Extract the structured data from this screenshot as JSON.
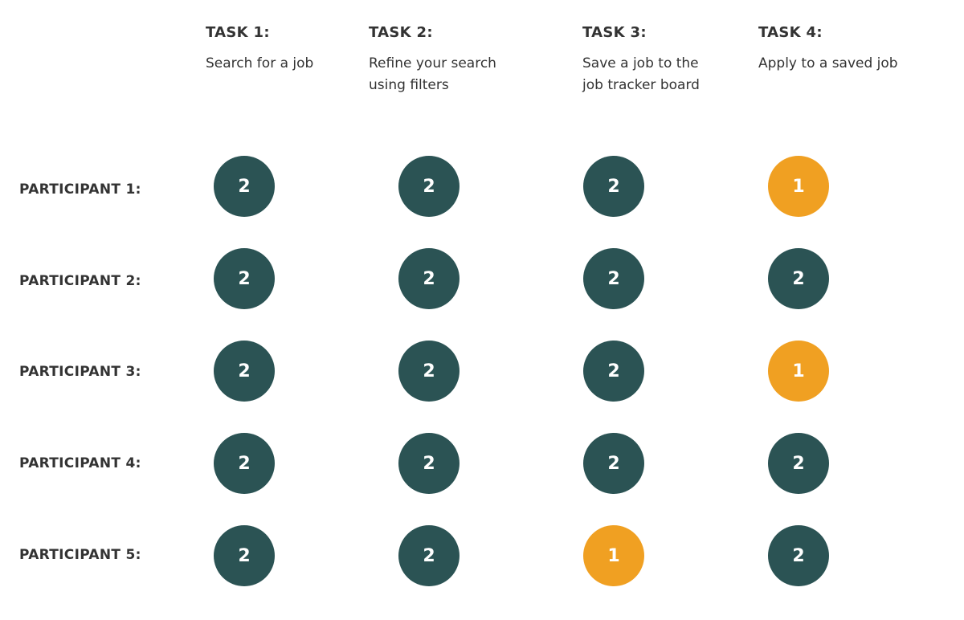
{
  "colors": {
    "score_2": "#2b5354",
    "score_1": "#f0a022"
  },
  "tasks": [
    {
      "title": "TASK 1:",
      "desc": "Search for a job"
    },
    {
      "title": "TASK 2:",
      "desc": "Refine your search\nusing filters"
    },
    {
      "title": "TASK 3:",
      "desc": "Save a job to the\njob tracker board"
    },
    {
      "title": "TASK 4:",
      "desc": "Apply to a saved job"
    }
  ],
  "participants": [
    {
      "label": "PARTICIPANT 1:",
      "scores": [
        "2",
        "2",
        "2",
        "1"
      ]
    },
    {
      "label": "PARTICIPANT 2:",
      "scores": [
        "2",
        "2",
        "2",
        "2"
      ]
    },
    {
      "label": "PARTICIPANT 3:",
      "scores": [
        "2",
        "2",
        "2",
        "1"
      ]
    },
    {
      "label": "PARTICIPANT 4:",
      "scores": [
        "2",
        "2",
        "2",
        "2"
      ]
    },
    {
      "label": "PARTICIPANT 5:",
      "scores": [
        "2",
        "2",
        "1",
        "2"
      ]
    }
  ]
}
